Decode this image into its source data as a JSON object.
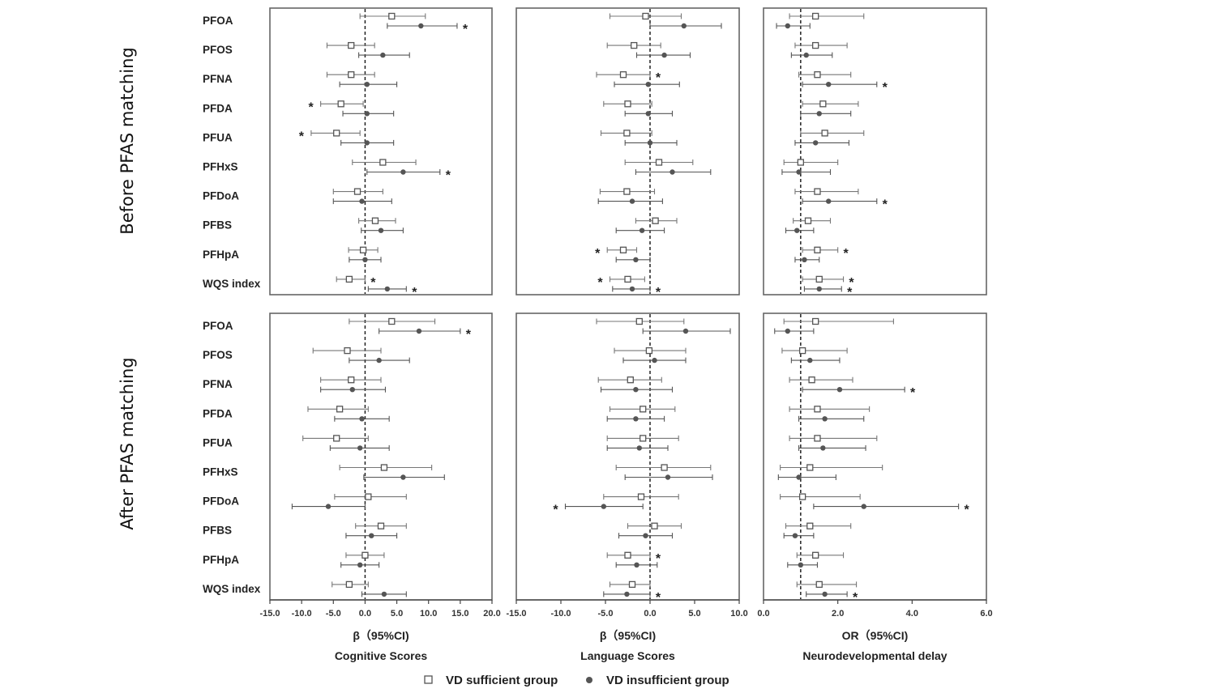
{
  "figure": {
    "row_titles": [
      "Before PFAS matching",
      "After PFAS matching"
    ],
    "legend": {
      "sufficient": "VD sufficient group",
      "insufficient": "VD insufficient group"
    }
  },
  "chart_data": [
    {
      "type": "forest",
      "row": "Before PFAS matching",
      "xlabel": "β（95%CI)",
      "title": "Cognitive Scores",
      "xlim": [
        -15,
        20
      ],
      "xticks": [
        "-15.0",
        "-10.0",
        "-5.0",
        "0.0",
        "5.0",
        "10.0",
        "15.0",
        "20.0"
      ],
      "ref": 0,
      "categories": [
        "PFOA",
        "PFOS",
        "PFNA",
        "PFDA",
        "PFUA",
        "PFHxS",
        "PFDoA",
        "PFBS",
        "PFHpA",
        "WQS index"
      ],
      "series": [
        {
          "name": "VD sufficient group",
          "est": [
            4.2,
            -2.2,
            -2.2,
            -3.8,
            -4.5,
            2.8,
            -1.2,
            1.6,
            -0.3,
            -2.5
          ],
          "lo": [
            -0.8,
            -6,
            -6,
            -7,
            -8.5,
            -2,
            -5,
            -1,
            -2.6,
            -4.5
          ],
          "hi": [
            9.5,
            1.5,
            1.5,
            -0.3,
            -0.8,
            8,
            2.8,
            4.8,
            2,
            0
          ],
          "sig": [
            false,
            false,
            false,
            true,
            true,
            false,
            false,
            false,
            false,
            true
          ]
        },
        {
          "name": "VD insufficient group",
          "est": [
            8.8,
            2.8,
            0.3,
            0.3,
            0.3,
            6,
            -0.5,
            2.5,
            0,
            3.5
          ],
          "lo": [
            3.5,
            -1,
            -4,
            -3.5,
            -3.8,
            0.3,
            -5,
            -0.6,
            -2.5,
            0.5
          ],
          "hi": [
            14.5,
            7,
            5,
            4.5,
            4.5,
            11.8,
            4.2,
            6,
            2.5,
            6.5
          ],
          "sig": [
            true,
            false,
            false,
            false,
            false,
            true,
            false,
            false,
            false,
            true
          ]
        }
      ]
    },
    {
      "type": "forest",
      "row": "Before PFAS matching",
      "xlabel": "β（95%CI)",
      "title": "Language Scores",
      "xlim": [
        -15,
        10
      ],
      "xticks": [
        "-15.0",
        "-10.0",
        "-5.0",
        "0.0",
        "5.0",
        "10.0"
      ],
      "ref": 0,
      "categories": [
        "PFOA",
        "PFOS",
        "PFNA",
        "PFDA",
        "PFUA",
        "PFHxS",
        "PFDoA",
        "PFBS",
        "PFHpA",
        "WQS index"
      ],
      "series": [
        {
          "name": "VD sufficient group",
          "est": [
            -0.5,
            -1.8,
            -3,
            -2.5,
            -2.6,
            1,
            -2.6,
            0.6,
            -3,
            -2.5
          ],
          "lo": [
            -4.5,
            -4.8,
            -6,
            -5.2,
            -5.5,
            -2.8,
            -5.6,
            -1.6,
            -4.8,
            -4.5
          ],
          "hi": [
            3.5,
            1.2,
            0,
            0.2,
            0.2,
            4.8,
            0.5,
            3,
            -1.5,
            -0.6
          ],
          "sig": [
            false,
            false,
            true,
            false,
            false,
            false,
            false,
            false,
            true,
            true
          ]
        },
        {
          "name": "VD insufficient group",
          "est": [
            3.8,
            1.6,
            -0.2,
            -0.2,
            0,
            2.5,
            -2,
            -0.9,
            -1.6,
            -2
          ],
          "lo": [
            0,
            -1.5,
            -4,
            -2.8,
            -2.8,
            -1.6,
            -5.8,
            -3.8,
            -3.8,
            -4.2
          ],
          "hi": [
            8,
            4.5,
            3.3,
            2.5,
            3,
            6.8,
            1.4,
            1.6,
            0,
            0
          ],
          "sig": [
            false,
            false,
            false,
            false,
            false,
            false,
            false,
            false,
            false,
            true
          ]
        }
      ]
    },
    {
      "type": "forest",
      "row": "Before PFAS matching",
      "xlabel": "OR（95%CI)",
      "title": "Neurodevelopmental delay",
      "xlim": [
        0,
        6
      ],
      "xticks": [
        "0.0",
        "2.0",
        "4.0",
        "6.0"
      ],
      "ref": 1,
      "categories": [
        "PFOA",
        "PFOS",
        "PFNA",
        "PFDA",
        "PFUA",
        "PFHxS",
        "PFDoA",
        "PFBS",
        "PFHpA",
        "WQS index"
      ],
      "series": [
        {
          "name": "VD sufficient group",
          "est": [
            1.4,
            1.4,
            1.45,
            1.6,
            1.65,
            1,
            1.45,
            1.2,
            1.45,
            1.5
          ],
          "lo": [
            0.7,
            0.85,
            0.95,
            1.05,
            1,
            0.55,
            0.85,
            0.8,
            1.05,
            1.05
          ],
          "hi": [
            2.7,
            2.25,
            2.35,
            2.55,
            2.7,
            2,
            2.55,
            1.8,
            2,
            2.15
          ],
          "sig": [
            false,
            false,
            false,
            false,
            false,
            false,
            false,
            false,
            true,
            true
          ]
        },
        {
          "name": "VD insufficient group",
          "est": [
            0.65,
            1.15,
            1.75,
            1.5,
            1.4,
            0.95,
            1.75,
            0.9,
            1.1,
            1.5
          ],
          "lo": [
            0.35,
            0.75,
            1.05,
            1,
            0.85,
            0.5,
            1.05,
            0.6,
            0.85,
            1.1
          ],
          "hi": [
            1.25,
            1.85,
            3.05,
            2.35,
            2.3,
            1.8,
            3.05,
            1.35,
            1.5,
            2.1
          ],
          "sig": [
            false,
            false,
            true,
            false,
            false,
            false,
            true,
            false,
            false,
            true
          ]
        }
      ]
    },
    {
      "type": "forest",
      "row": "After PFAS matching",
      "xlabel": "β（95%CI)",
      "title": "Cognitive Scores",
      "xlim": [
        -15,
        20
      ],
      "xticks": [
        "-15.0",
        "-10.0",
        "-5.0",
        "0.0",
        "5.0",
        "10.0",
        "15.0",
        "20.0"
      ],
      "ref": 0,
      "categories": [
        "PFOA",
        "PFOS",
        "PFNA",
        "PFDA",
        "PFUA",
        "PFHxS",
        "PFDoA",
        "PFBS",
        "PFHpA",
        "WQS index"
      ],
      "series": [
        {
          "name": "VD sufficient group",
          "est": [
            4.2,
            -2.8,
            -2.2,
            -4,
            -4.5,
            3,
            0.5,
            2.5,
            0,
            -2.5
          ],
          "lo": [
            -2.5,
            -8.2,
            -7,
            -9,
            -9.8,
            -4,
            -4.8,
            -1.5,
            -3,
            -5.2
          ],
          "hi": [
            11,
            2.5,
            2.5,
            0.5,
            0.5,
            10.5,
            6.5,
            6.5,
            3,
            0.5
          ],
          "sig": [
            false,
            false,
            false,
            false,
            false,
            false,
            false,
            false,
            false,
            false
          ]
        },
        {
          "name": "VD insufficient group",
          "est": [
            8.5,
            2.2,
            -2,
            -0.5,
            -0.8,
            6,
            -5.8,
            1,
            -0.8,
            3
          ],
          "lo": [
            2.2,
            -2.5,
            -7,
            -4.8,
            -5.5,
            -0.2,
            -11.5,
            -3,
            -3.8,
            -0.5
          ],
          "hi": [
            15,
            7,
            3.2,
            3.8,
            3.8,
            12.5,
            0,
            5,
            2.2,
            6.5
          ],
          "sig": [
            true,
            false,
            false,
            false,
            false,
            false,
            false,
            false,
            false,
            false
          ]
        }
      ]
    },
    {
      "type": "forest",
      "row": "After PFAS matching",
      "xlabel": "β（95%CI)",
      "title": "Language Scores",
      "xlim": [
        -15,
        10
      ],
      "xticks": [
        "-15.0",
        "-10.0",
        "-5.0",
        "0.0",
        "5.0",
        "10.0"
      ],
      "ref": 0,
      "categories": [
        "PFOA",
        "PFOS",
        "PFNA",
        "PFDA",
        "PFUA",
        "PFHxS",
        "PFDoA",
        "PFBS",
        "PFHpA",
        "WQS index"
      ],
      "series": [
        {
          "name": "VD sufficient group",
          "est": [
            -1.2,
            -0.1,
            -2.2,
            -0.8,
            -0.8,
            1.6,
            -1,
            0.5,
            -2.5,
            -2
          ],
          "lo": [
            -6,
            -4,
            -5.8,
            -4.5,
            -4.8,
            -3.8,
            -5.2,
            -2.5,
            -4.8,
            -4.5
          ],
          "hi": [
            3.8,
            4,
            1.3,
            2.8,
            3.2,
            6.8,
            3.2,
            3.5,
            0,
            0
          ],
          "sig": [
            false,
            false,
            false,
            false,
            false,
            false,
            false,
            false,
            true,
            false
          ]
        },
        {
          "name": "VD insufficient group",
          "est": [
            4,
            0.5,
            -1.6,
            -1.6,
            -1.2,
            2,
            -5.2,
            -0.5,
            -1.5,
            -2.6
          ],
          "lo": [
            -0.8,
            -3,
            -5.5,
            -4.8,
            -4.8,
            -2.8,
            -9.5,
            -3.5,
            -3.8,
            -5.2
          ],
          "hi": [
            9,
            4,
            2.5,
            1.6,
            2,
            7,
            -0.8,
            2.5,
            0.8,
            0
          ],
          "sig": [
            false,
            false,
            false,
            false,
            false,
            false,
            true,
            false,
            false,
            true
          ]
        }
      ]
    },
    {
      "type": "forest",
      "row": "After PFAS matching",
      "xlabel": "OR（95%CI)",
      "title": "Neurodevelopmental delay",
      "xlim": [
        0,
        6
      ],
      "xticks": [
        "0.0",
        "2.0",
        "4.0",
        "6.0"
      ],
      "ref": 1,
      "categories": [
        "PFOA",
        "PFOS",
        "PFNA",
        "PFDA",
        "PFUA",
        "PFHxS",
        "PFDoA",
        "PFBS",
        "PFHpA",
        "WQS index"
      ],
      "series": [
        {
          "name": "VD sufficient group",
          "est": [
            1.4,
            1.05,
            1.3,
            1.45,
            1.45,
            1.25,
            1.05,
            1.25,
            1.4,
            1.5
          ],
          "lo": [
            0.55,
            0.5,
            0.7,
            0.7,
            0.7,
            0.45,
            0.45,
            0.6,
            0.9,
            0.9
          ],
          "hi": [
            3.5,
            2.25,
            2.4,
            2.85,
            3.05,
            3.2,
            2.6,
            2.35,
            2.15,
            2.5
          ],
          "sig": [
            false,
            false,
            false,
            false,
            false,
            false,
            false,
            false,
            false,
            false
          ]
        },
        {
          "name": "VD insufficient group",
          "est": [
            0.65,
            1.25,
            2.05,
            1.65,
            1.6,
            0.95,
            2.7,
            0.85,
            1,
            1.65
          ],
          "lo": [
            0.3,
            0.75,
            1.05,
            0.95,
            0.95,
            0.4,
            1.35,
            0.55,
            0.65,
            1.15
          ],
          "hi": [
            1.35,
            2.05,
            3.8,
            2.7,
            2.75,
            1.95,
            5.25,
            1.35,
            1.45,
            2.25
          ],
          "sig": [
            false,
            false,
            true,
            false,
            false,
            false,
            true,
            false,
            false,
            true
          ]
        }
      ]
    }
  ]
}
